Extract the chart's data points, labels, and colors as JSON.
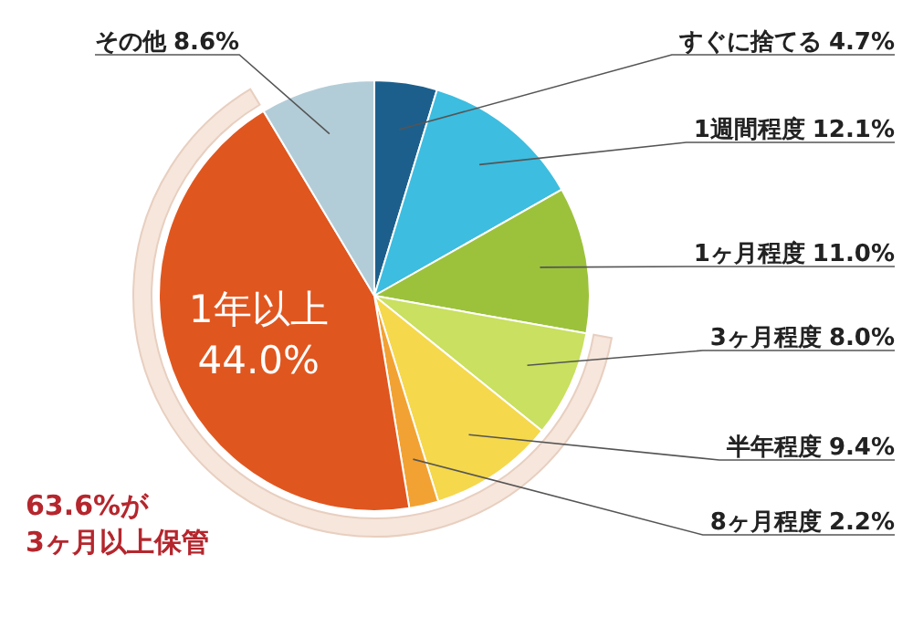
{
  "chart_data": {
    "type": "pie",
    "categories": [
      "すぐに捨てる",
      "1週間程度",
      "1ヶ月程度",
      "3ヶ月程度",
      "半年程度",
      "8ヶ月程度",
      "1年以上",
      "その他"
    ],
    "values": [
      4.7,
      12.1,
      11.0,
      8.0,
      9.4,
      2.2,
      44.0,
      8.6
    ],
    "colors": [
      "#1d5f8c",
      "#3dbde0",
      "#9cc23c",
      "#c9e060",
      "#f5d84c",
      "#f2a232",
      "#e0561f",
      "#b3cdd8"
    ],
    "value_labels": [
      "4.7%",
      "12.1%",
      "11.0%",
      "8.0%",
      "9.4%",
      "2.2%",
      "44.0%",
      "8.6%"
    ],
    "annotations": [
      "63.6%が\n3ヶ月以上保管"
    ]
  }
}
